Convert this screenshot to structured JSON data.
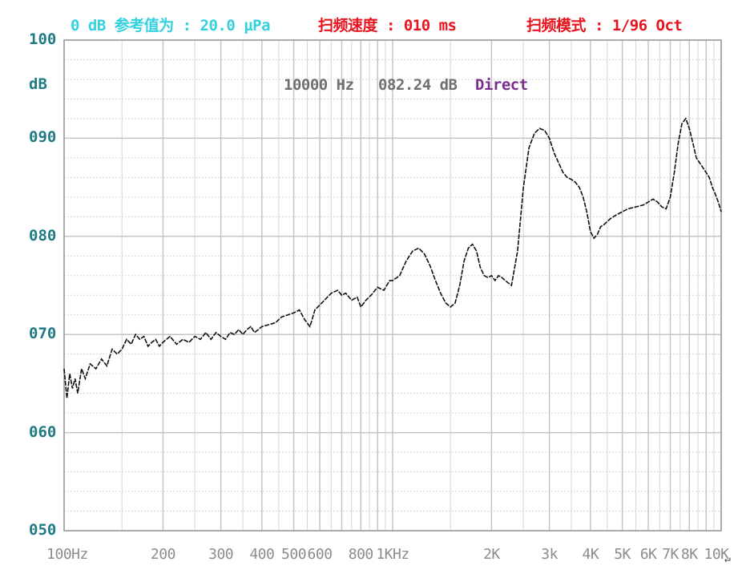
{
  "header": {
    "reference": "0 dB 参考值为 : 20.0 µPa",
    "sweep_speed": "扫频速度 : 010 ms",
    "sweep_mode": "扫频模式 : 1/96 Oct"
  },
  "readout": {
    "frequency": "10000 Hz",
    "level": "082.24 dB",
    "mode": "Direct"
  },
  "colors": {
    "reference": "#33d1e0",
    "sweep_speed": "#e8141e",
    "sweep_mode": "#e8141e",
    "frequency": "#707070",
    "level": "#707070",
    "mode": "#7a2d8c",
    "axis_text": "#1f7a86",
    "grid_major": "#c4c4c4",
    "grid_minor": "#d6d6d6",
    "trace": "#111111"
  },
  "return_mark": "↵",
  "chart_data": {
    "type": "line",
    "xscale": "log",
    "xlim": [
      100,
      10000
    ],
    "ylim": [
      50,
      100
    ],
    "yunit": "dB",
    "grid": true,
    "yticks": [
      {
        "value": 100,
        "label": "100"
      },
      {
        "value": 90,
        "label": "090"
      },
      {
        "value": 80,
        "label": "080"
      },
      {
        "value": 70,
        "label": "070"
      },
      {
        "value": 60,
        "label": "060"
      },
      {
        "value": 50,
        "label": "050"
      }
    ],
    "xticks": [
      {
        "value": 100,
        "label": "100Hz"
      },
      {
        "value": 200,
        "label": "200"
      },
      {
        "value": 300,
        "label": "300"
      },
      {
        "value": 400,
        "label": "400"
      },
      {
        "value": 500,
        "label": "500"
      },
      {
        "value": 600,
        "label": "600"
      },
      {
        "value": 800,
        "label": "800"
      },
      {
        "value": 1000,
        "label": "1KHz"
      },
      {
        "value": 2000,
        "label": "2K"
      },
      {
        "value": 3000,
        "label": "3k"
      },
      {
        "value": 4000,
        "label": "4K"
      },
      {
        "value": 5000,
        "label": "5K"
      },
      {
        "value": 6000,
        "label": "6K"
      },
      {
        "value": 7000,
        "label": "7K"
      },
      {
        "value": 8000,
        "label": "8K"
      },
      {
        "value": 10000,
        "label": "10K"
      }
    ],
    "series": [
      {
        "x": [
          100,
          102,
          104,
          106,
          108,
          110,
          113,
          116,
          120,
          125,
          130,
          135,
          140,
          145,
          150,
          155,
          160,
          165,
          170,
          175,
          180,
          185,
          190,
          195,
          200,
          210,
          220,
          230,
          240,
          250,
          260,
          270,
          280,
          290,
          300,
          310,
          320,
          330,
          340,
          350,
          360,
          370,
          380,
          390,
          400,
          420,
          440,
          460,
          480,
          500,
          520,
          540,
          560,
          580,
          600,
          620,
          650,
          680,
          700,
          720,
          750,
          780,
          800,
          830,
          860,
          900,
          940,
          980,
          1000,
          1050,
          1100,
          1150,
          1200,
          1250,
          1300,
          1350,
          1400,
          1450,
          1500,
          1550,
          1600,
          1650,
          1700,
          1750,
          1800,
          1850,
          1900,
          1950,
          2000,
          2050,
          2100,
          2150,
          2200,
          2300,
          2400,
          2500,
          2600,
          2700,
          2800,
          2900,
          3000,
          3100,
          3200,
          3300,
          3400,
          3500,
          3600,
          3700,
          3800,
          3900,
          4000,
          4100,
          4200,
          4300,
          4400,
          4500,
          4600,
          4700,
          4800,
          5000,
          5200,
          5500,
          5800,
          6000,
          6200,
          6400,
          6600,
          6800,
          7000,
          7200,
          7400,
          7600,
          7800,
          8000,
          8200,
          8400,
          8600,
          8800,
          9000,
          9200,
          9400,
          9600,
          9800,
          10000
        ],
        "y": [
          66.5,
          63.5,
          66,
          64.5,
          65.5,
          64,
          66.5,
          65.5,
          67,
          66.5,
          67.5,
          66.8,
          68.5,
          68,
          68.5,
          69.5,
          69,
          70,
          69.5,
          69.8,
          68.8,
          69.2,
          69.5,
          68.8,
          69.2,
          69.8,
          69,
          69.5,
          69.2,
          69.8,
          69.5,
          70.2,
          69.5,
          70.2,
          69.8,
          69.5,
          70.2,
          70,
          70.5,
          70,
          70.5,
          70.8,
          70.2,
          70.5,
          70.8,
          71,
          71.2,
          71.8,
          72,
          72.2,
          72.5,
          71.5,
          70.8,
          72.5,
          73,
          73.5,
          74.2,
          74.5,
          74,
          74.2,
          73.5,
          73.8,
          72.8,
          73.5,
          74,
          74.8,
          74.5,
          75.5,
          75.5,
          76,
          77.5,
          78.5,
          78.8,
          78.2,
          77,
          75.5,
          74.2,
          73.2,
          72.8,
          73.2,
          75,
          77.5,
          78.8,
          79.2,
          78.5,
          76.8,
          76,
          75.8,
          76,
          75.5,
          76,
          75.8,
          75.5,
          75,
          78.5,
          85,
          89,
          90.5,
          91,
          90.8,
          90,
          88.5,
          87.5,
          86.5,
          86,
          85.8,
          85.5,
          85,
          84,
          82.5,
          80.5,
          79.8,
          80.2,
          81,
          81.2,
          81.5,
          81.8,
          82,
          82.2,
          82.5,
          82.8,
          83,
          83.2,
          83.5,
          83.8,
          83.5,
          83,
          82.8,
          84,
          86.5,
          89.5,
          91.5,
          92,
          91,
          89.5,
          88,
          87.5,
          87,
          86.5,
          86,
          85,
          84.3,
          83.5,
          82.5
        ]
      }
    ]
  }
}
